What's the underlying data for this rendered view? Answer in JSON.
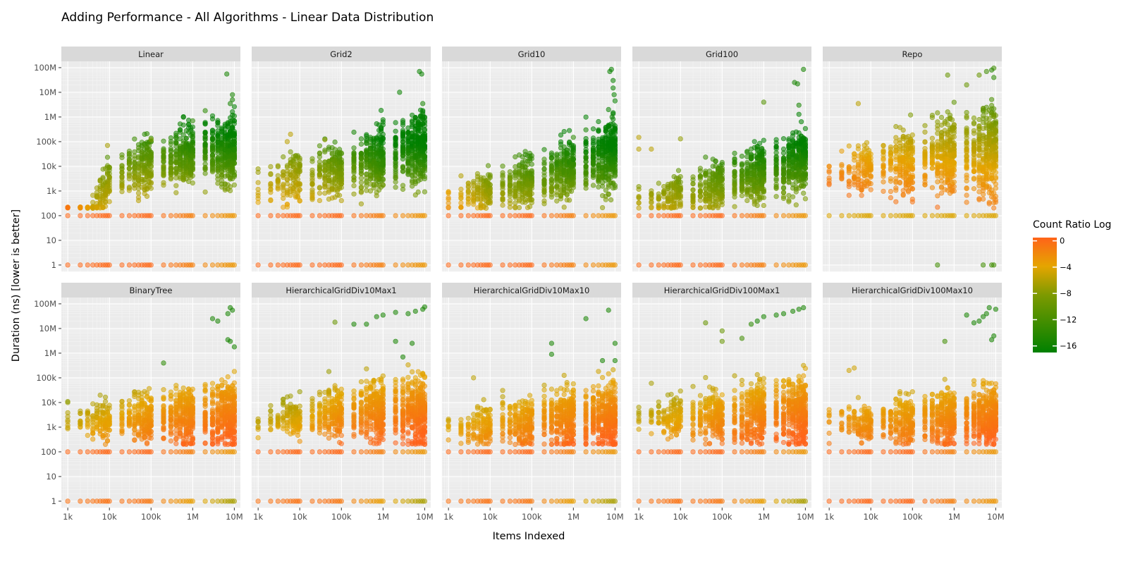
{
  "chart_data": {
    "type": "scatter",
    "title": "Adding Performance - All Algorithms - Linear Data Distribution",
    "xlabel": "Items Indexed",
    "ylabel": "Duration (ns) [lower is better]",
    "x_scale": "log10",
    "y_scale": "log10",
    "xlim": [
      700,
      14000000
    ],
    "ylim": [
      0.55,
      180000000
    ],
    "x_ticks": [
      1000,
      10000,
      100000,
      1000000,
      10000000
    ],
    "x_tick_labels": [
      "1k",
      "10k",
      "100k",
      "1M",
      "10M"
    ],
    "y_ticks": [
      1,
      10,
      100,
      1000,
      10000,
      100000,
      1000000,
      10000000,
      100000000
    ],
    "y_tick_labels": [
      "1",
      "10",
      "100",
      "1k",
      "10k",
      "100k",
      "1M",
      "10M",
      "100M"
    ],
    "grid": true,
    "legend": {
      "title": "Count Ratio Log",
      "position": "right",
      "range": [
        -17,
        0.5
      ],
      "ticks": [
        0,
        -4,
        -8,
        -12,
        -16
      ],
      "tick_labels": [
        "0",
        "−4",
        "−8",
        "−12",
        "−16"
      ],
      "colors": {
        "high": "#ff6319",
        "mid": "#e5a500",
        "low": "#008000"
      }
    },
    "x_values": [
      1000,
      2000,
      3000,
      4000,
      5000,
      6000,
      7000,
      8000,
      9000,
      10000,
      20000,
      30000,
      40000,
      50000,
      60000,
      70000,
      80000,
      90000,
      100000,
      200000,
      300000,
      400000,
      500000,
      600000,
      700000,
      800000,
      900000,
      1000000,
      2000000,
      3000000,
      4000000,
      5000000,
      6000000,
      7000000,
      8000000,
      9000000,
      10000000
    ],
    "panels": [
      {
        "name": "Linear",
        "row": 1,
        "base": [
          [
            1000,
            1,
            -2
          ],
          [
            10000,
            2500,
            -10
          ],
          [
            100000,
            15000,
            -12
          ],
          [
            1000000,
            30000,
            -14
          ],
          [
            10000000,
            50000,
            -15.5
          ]
        ],
        "spread": [
          1.2,
          1.1,
          1.3,
          1.5,
          1.7
        ],
        "floor": [
          200,
          200,
          200,
          200,
          200
        ],
        "baselines": [
          [
            100,
            "orange"
          ],
          [
            1,
            "orange"
          ]
        ],
        "outliers": [
          [
            6600000,
            55000000,
            -16
          ],
          [
            9000000,
            8000000,
            -16
          ],
          [
            9000000,
            5000000,
            -16
          ],
          [
            8000000,
            3500000,
            -16
          ],
          [
            2000000,
            1800000,
            -15
          ],
          [
            1000000,
            700000,
            -15
          ],
          [
            9000,
            70000,
            -9
          ],
          [
            100000,
            120000,
            -11
          ]
        ]
      },
      {
        "name": "Grid2",
        "row": 1,
        "base": [
          [
            1000,
            2000,
            -8
          ],
          [
            10000,
            3500,
            -9
          ],
          [
            100000,
            9000,
            -12
          ],
          [
            1000000,
            20000,
            -15
          ],
          [
            10000000,
            60000,
            -16.5
          ]
        ],
        "spread": [
          1.0,
          1.3,
          1.4,
          1.6,
          1.7
        ],
        "floor": [
          200,
          200,
          200,
          200,
          200
        ],
        "baselines": [
          [
            100,
            "orange"
          ],
          [
            1,
            "orange"
          ]
        ],
        "outliers": [
          [
            7500000,
            70000000,
            -16.5
          ],
          [
            8500000,
            55000000,
            -16.5
          ],
          [
            2500000,
            10000000,
            -16.5
          ],
          [
            9000000,
            3500000,
            -16
          ],
          [
            6000,
            200000,
            -8
          ],
          [
            5000,
            100000,
            -8
          ],
          [
            40000,
            120000,
            -10
          ]
        ]
      },
      {
        "name": "Grid10",
        "row": 1,
        "base": [
          [
            1000,
            500,
            -5
          ],
          [
            10000,
            1000,
            -10
          ],
          [
            100000,
            2500,
            -12
          ],
          [
            1000000,
            8000,
            -14
          ],
          [
            10000000,
            40000,
            -16.5
          ]
        ],
        "spread": [
          0.8,
          1.0,
          1.3,
          1.5,
          1.7
        ],
        "floor": [
          200,
          200,
          200,
          200,
          200
        ],
        "baselines": [
          [
            100,
            "orange"
          ],
          [
            1,
            "orange"
          ]
        ],
        "outliers": [
          [
            7500000,
            70000000,
            -16.5
          ],
          [
            8200000,
            85000000,
            -16.5
          ],
          [
            9000000,
            30000000,
            -16.5
          ],
          [
            9000000,
            15000000,
            -16.5
          ],
          [
            9500000,
            8000000,
            -16.5
          ],
          [
            10000000,
            4500000,
            -16.5
          ],
          [
            7000000,
            2000000,
            -16.5
          ],
          [
            8500000,
            1000000,
            -16.5
          ],
          [
            2000000,
            300000,
            -16
          ],
          [
            1000000,
            150000,
            -15
          ]
        ]
      },
      {
        "name": "Grid100",
        "row": 1,
        "base": [
          [
            1000,
            500,
            -9
          ],
          [
            10000,
            800,
            -10
          ],
          [
            100000,
            2000,
            -12
          ],
          [
            1000000,
            6000,
            -14
          ],
          [
            10000000,
            20000,
            -15.5
          ]
        ],
        "spread": [
          0.9,
          1.0,
          1.2,
          1.4,
          1.5
        ],
        "floor": [
          200,
          200,
          200,
          200,
          200
        ],
        "baselines": [
          [
            100,
            "orange"
          ],
          [
            1,
            "orange"
          ]
        ],
        "outliers": [
          [
            9000000,
            85000000,
            -16
          ],
          [
            5500000,
            25000000,
            -16
          ],
          [
            6500000,
            22000000,
            -16
          ],
          [
            7000000,
            3000000,
            -16
          ],
          [
            1000000,
            4000000,
            -13
          ],
          [
            1000,
            150000,
            -8
          ],
          [
            1000,
            50000,
            -8
          ],
          [
            2000,
            50000,
            -8
          ],
          [
            10000,
            130000,
            -10
          ]
        ]
      },
      {
        "name": "Repo",
        "row": 1,
        "base": [
          [
            1000,
            3000,
            -2
          ],
          [
            10000,
            10000,
            -5
          ],
          [
            100000,
            20000,
            -6
          ],
          [
            1000000,
            30000,
            -7
          ],
          [
            10000000,
            40000,
            -8
          ]
        ],
        "spread": [
          1.0,
          1.3,
          1.7,
          2.0,
          2.2
        ],
        "floor": [
          200,
          200,
          200,
          200,
          200
        ],
        "baselines": [
          [
            100,
            "mid"
          ]
        ],
        "outliers": [
          [
            9000000,
            95000000,
            -14
          ],
          [
            8000000,
            80000000,
            -15
          ],
          [
            6000000,
            70000000,
            -14
          ],
          [
            4000000,
            50000000,
            -12
          ],
          [
            2000000,
            20000000,
            -12
          ],
          [
            700000,
            50000000,
            -12
          ],
          [
            5000,
            3500000,
            -8
          ],
          [
            9000000,
            40000000,
            -15
          ],
          [
            400000,
            1,
            -14
          ],
          [
            5000000,
            1,
            -14
          ],
          [
            8000000,
            1,
            -14
          ],
          [
            9000000,
            1,
            -14
          ]
        ]
      },
      {
        "name": "BinaryTree",
        "row": 2,
        "base": [
          [
            1000,
            2000,
            -8
          ],
          [
            10000,
            2000,
            -6
          ],
          [
            100000,
            2500,
            -4
          ],
          [
            1000000,
            3000,
            -3
          ],
          [
            10000000,
            3500,
            -2
          ]
        ],
        "spread": [
          0.8,
          1.0,
          1.3,
          1.5,
          1.7
        ],
        "floor": [
          200,
          200,
          200,
          200,
          200
        ],
        "baselines": [
          [
            100,
            "orange"
          ],
          [
            1,
            "gradient"
          ]
        ],
        "outliers": [
          [
            9000000,
            55000000,
            -16
          ],
          [
            8000000,
            70000000,
            -16
          ],
          [
            7000000,
            40000000,
            -16
          ],
          [
            3000000,
            25000000,
            -16
          ],
          [
            4000000,
            20000000,
            -16
          ],
          [
            10000000,
            1800000,
            -16
          ],
          [
            7000000,
            3500000,
            -16
          ],
          [
            8000000,
            3000000,
            -16
          ],
          [
            200000,
            400000,
            -15
          ],
          [
            1000,
            11000,
            -10
          ]
        ]
      },
      {
        "name": "HierarchicalGridDiv10Max1",
        "row": 2,
        "base": [
          [
            1000,
            2000,
            -8
          ],
          [
            10000,
            3000,
            -7
          ],
          [
            100000,
            3500,
            -4
          ],
          [
            1000000,
            4000,
            -3
          ],
          [
            10000000,
            5000,
            -2
          ]
        ],
        "spread": [
          0.8,
          1.1,
          1.3,
          1.6,
          1.8
        ],
        "floor": [
          200,
          200,
          200,
          200,
          200
        ],
        "baselines": [
          [
            100,
            "orange"
          ],
          [
            1,
            "gradient"
          ]
        ],
        "outliers": [
          [
            10000000,
            75000000,
            -16
          ],
          [
            9000000,
            60000000,
            -16
          ],
          [
            6000000,
            50000000,
            -16
          ],
          [
            4000000,
            40000000,
            -16
          ],
          [
            2000000,
            45000000,
            -16
          ],
          [
            1000000,
            35000000,
            -16
          ],
          [
            700000,
            30000000,
            -16
          ],
          [
            400000,
            15000000,
            -16
          ],
          [
            200000,
            15000000,
            -16
          ],
          [
            70000,
            18000000,
            -12
          ],
          [
            2000000,
            3000000,
            -16
          ],
          [
            5000000,
            2500000,
            -16
          ],
          [
            3000000,
            700000,
            -16
          ]
        ]
      },
      {
        "name": "HierarchicalGridDiv10Max10",
        "row": 2,
        "base": [
          [
            1000,
            800,
            -6
          ],
          [
            10000,
            1200,
            -5
          ],
          [
            100000,
            2000,
            -4
          ],
          [
            1000000,
            2500,
            -3
          ],
          [
            10000000,
            3000,
            -2
          ]
        ],
        "spread": [
          0.8,
          1.0,
          1.3,
          1.5,
          1.7
        ],
        "floor": [
          200,
          200,
          200,
          200,
          200
        ],
        "baselines": [
          [
            100,
            "orange"
          ],
          [
            1,
            "gradient"
          ]
        ],
        "outliers": [
          [
            7000000,
            55000000,
            -16
          ],
          [
            2000000,
            25000000,
            -16
          ],
          [
            10000000,
            2500000,
            -16
          ],
          [
            300000,
            2500000,
            -16
          ],
          [
            300000,
            900000,
            -16
          ],
          [
            5000000,
            500000,
            -16
          ],
          [
            10000000,
            500000,
            -16
          ],
          [
            4000,
            100000,
            -8
          ]
        ]
      },
      {
        "name": "HierarchicalGridDiv100Max1",
        "row": 2,
        "base": [
          [
            1000,
            3000,
            -8
          ],
          [
            10000,
            2500,
            -6
          ],
          [
            100000,
            3000,
            -4
          ],
          [
            1000000,
            3500,
            -3
          ],
          [
            10000000,
            4000,
            -2
          ]
        ],
        "spread": [
          0.8,
          1.1,
          1.4,
          1.6,
          1.8
        ],
        "floor": [
          200,
          200,
          200,
          200,
          200
        ],
        "baselines": [
          [
            100,
            "orange"
          ],
          [
            1,
            "gradient"
          ]
        ],
        "outliers": [
          [
            9000000,
            70000000,
            -16
          ],
          [
            7000000,
            60000000,
            -16
          ],
          [
            5000000,
            50000000,
            -16
          ],
          [
            3000000,
            40000000,
            -16
          ],
          [
            2000000,
            35000000,
            -16
          ],
          [
            1000000,
            30000000,
            -16
          ],
          [
            700000,
            20000000,
            -16
          ],
          [
            500000,
            15000000,
            -15
          ],
          [
            40000,
            17000000,
            -12
          ],
          [
            100000,
            8000000,
            -12
          ],
          [
            300000,
            4000000,
            -14
          ],
          [
            100000,
            3000000,
            -12
          ],
          [
            2000,
            60000,
            -9
          ]
        ]
      },
      {
        "name": "HierarchicalGridDiv100Max10",
        "row": 2,
        "base": [
          [
            1000,
            1500,
            -4
          ],
          [
            10000,
            1500,
            -4
          ],
          [
            100000,
            2000,
            -4
          ],
          [
            1000000,
            2500,
            -3
          ],
          [
            10000000,
            3000,
            -2
          ]
        ],
        "spread": [
          0.9,
          1.0,
          1.3,
          1.5,
          1.6
        ],
        "floor": [
          200,
          200,
          200,
          200,
          200
        ],
        "baselines": [
          [
            100,
            "orange"
          ],
          [
            1,
            "orange"
          ]
        ],
        "outliers": [
          [
            10000000,
            60000000,
            -16
          ],
          [
            7000000,
            70000000,
            -16
          ],
          [
            6000000,
            40000000,
            -16
          ],
          [
            5000000,
            30000000,
            -16
          ],
          [
            4000000,
            20000000,
            -16
          ],
          [
            3000000,
            17000000,
            -16
          ],
          [
            2000000,
            35000000,
            -16
          ],
          [
            9000000,
            5000000,
            -16
          ],
          [
            8000000,
            3500000,
            -16
          ],
          [
            600000,
            3000000,
            -14
          ],
          [
            4000,
            250000,
            -7
          ],
          [
            3000,
            200000,
            -7
          ]
        ]
      }
    ]
  }
}
